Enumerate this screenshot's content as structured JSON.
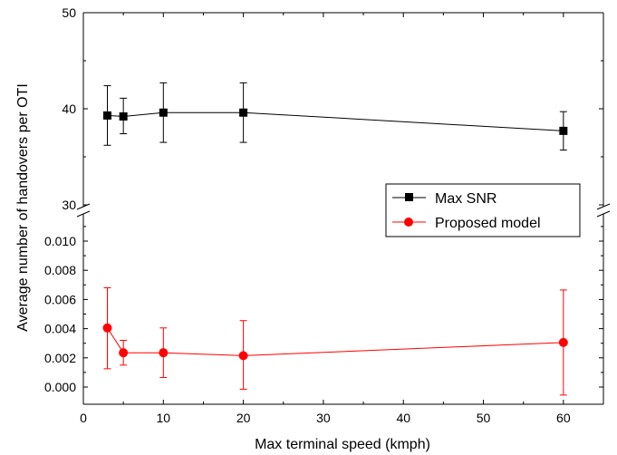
{
  "chart_data": {
    "type": "line",
    "xlabel": "Max terminal speed (kmph)",
    "ylabel": "Average number of handovers per OTI",
    "x": [
      3,
      5,
      10,
      20,
      60
    ],
    "xlim": [
      0,
      65
    ],
    "x_ticks": [
      0,
      10,
      20,
      30,
      40,
      50,
      60
    ],
    "x_tick_labels": [
      "0",
      "10",
      "20",
      "30",
      "40",
      "50",
      "60"
    ],
    "y_axis_break": true,
    "y_upper": {
      "ylim": [
        30,
        50
      ],
      "ticks": [
        30,
        40,
        50
      ],
      "tick_labels": [
        "30",
        "40",
        "50"
      ]
    },
    "y_lower": {
      "ylim": [
        -0.001,
        0.0115
      ],
      "ticks": [
        0.0,
        0.002,
        0.004,
        0.006,
        0.008,
        0.01
      ],
      "tick_labels": [
        "0.000",
        "0.002",
        "0.004",
        "0.006",
        "0.008",
        "0.010"
      ]
    },
    "series": [
      {
        "name": "Max SNR",
        "panel": "upper",
        "color": "#000000",
        "marker": "square",
        "values": [
          39.3,
          39.2,
          39.6,
          39.6,
          37.7
        ],
        "err_low": [
          36.2,
          37.4,
          36.5,
          36.5,
          35.7
        ],
        "err_high": [
          42.4,
          41.1,
          42.7,
          42.7,
          39.7
        ]
      },
      {
        "name": "Proposed model",
        "panel": "lower",
        "color": "#ff0000",
        "marker": "circle",
        "values": [
          0.00405,
          0.00235,
          0.00235,
          0.00215,
          0.00305
        ],
        "err_low": [
          0.00125,
          0.0015,
          0.00065,
          -0.00015,
          -0.00055
        ],
        "err_high": [
          0.0068,
          0.0032,
          0.00405,
          0.00455,
          0.00665
        ]
      }
    ],
    "legend_position": "right-middle",
    "grid": false
  }
}
